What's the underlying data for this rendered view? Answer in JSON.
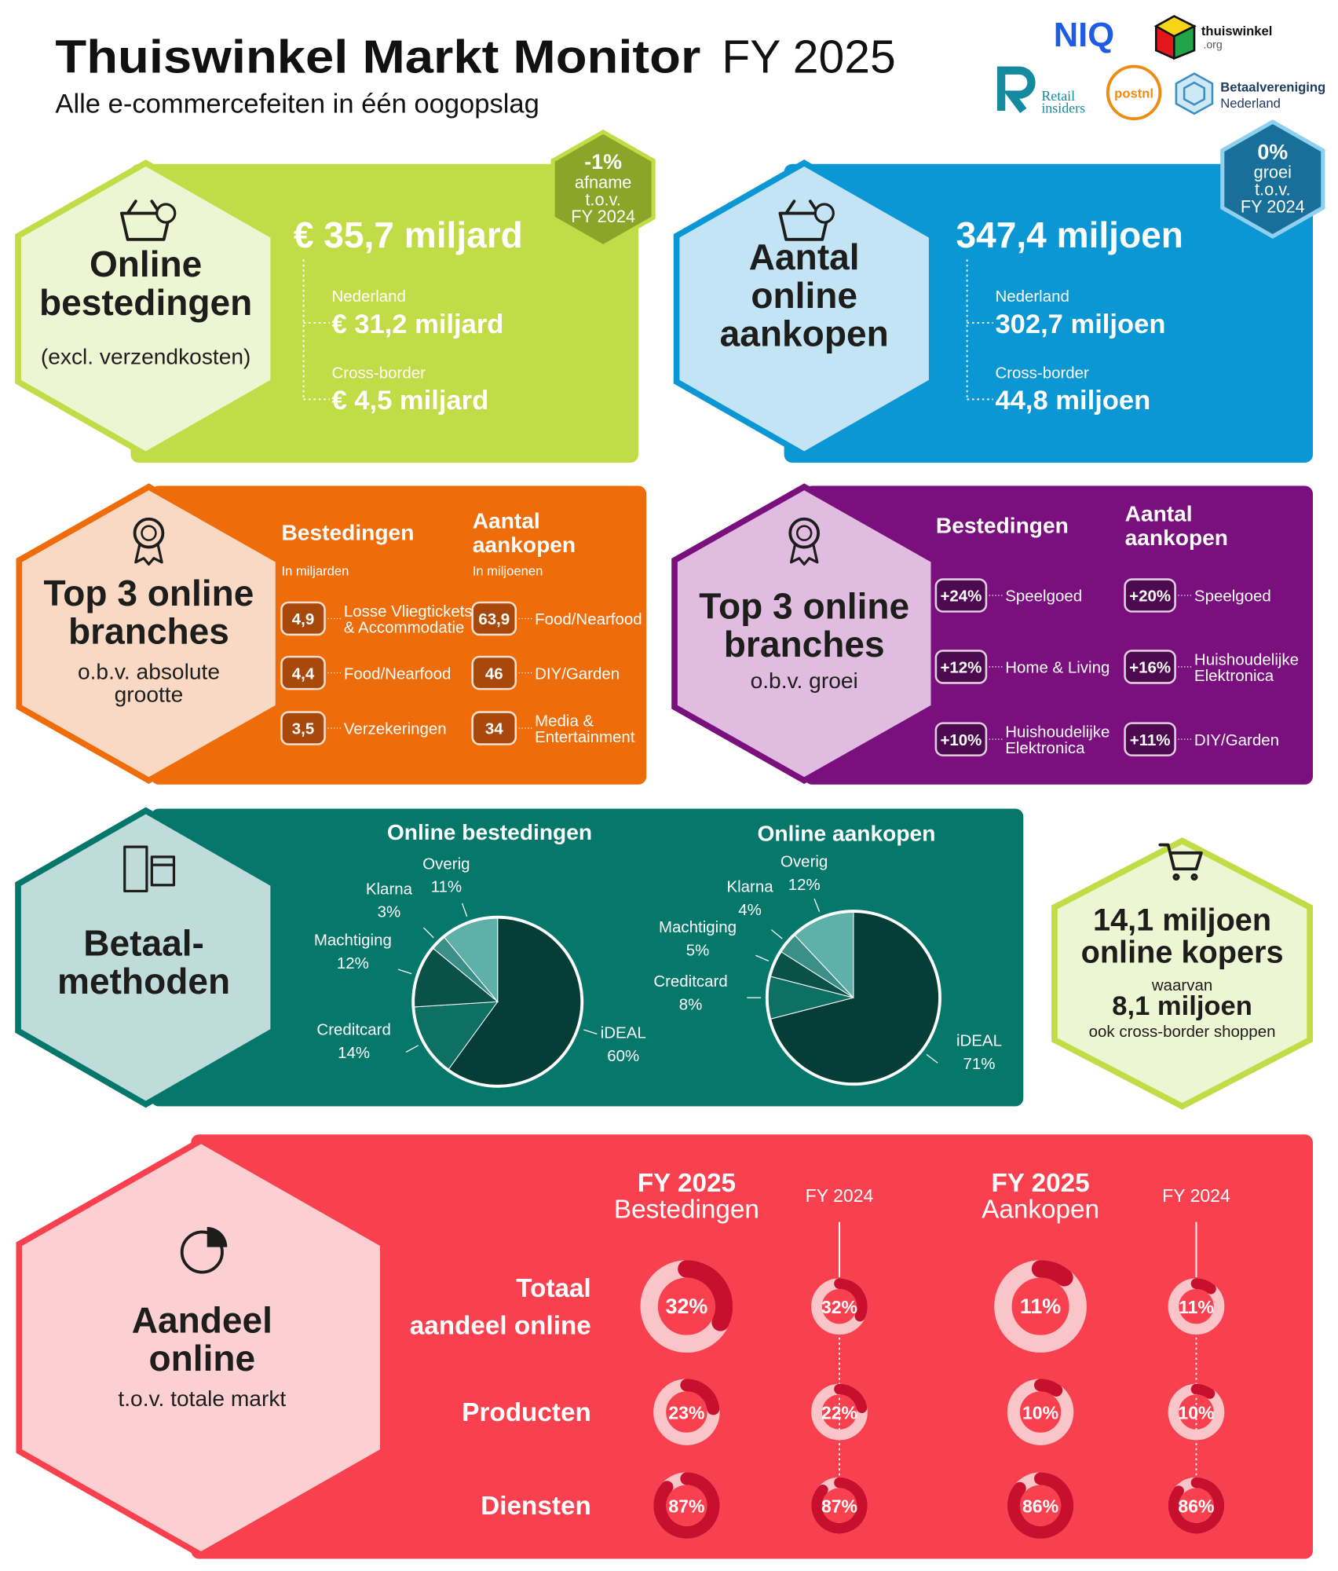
{
  "header": {
    "title": "Thuiswinkel Markt Monitor",
    "title_suffix": "FY 2025",
    "subtitle": "Alle e-commercefeiten in één oogopslag"
  },
  "logos": {
    "niq": "NIQ",
    "thuiswinkel": "thuiswinkel",
    "thuiswinkel_suffix": ".org",
    "retail": "Retail",
    "insiders": "insiders",
    "postnl": "postnl",
    "betaal": "Betaalvereniging",
    "betaal_sub": "Nederland"
  },
  "spending": {
    "title_lines": [
      "Online",
      "bestedingen"
    ],
    "note": "(excl. verzendkosten)",
    "total": "€ 35,7 miljard",
    "nl_label": "Nederland",
    "nl_value": "€ 31,2 miljard",
    "cb_label": "Cross-border",
    "cb_value": "€ 4,5 miljard",
    "badge": [
      "-1%",
      "afname",
      "t.o.v.",
      "FY 2024"
    ]
  },
  "purchases": {
    "title_lines": [
      "Aantal",
      "online",
      "aankopen"
    ],
    "total": "347,4 miljoen",
    "nl_label": "Nederland",
    "nl_value": "302,7 miljoen",
    "cb_label": "Cross-border",
    "cb_value": "44,8 miljoen",
    "badge": [
      "0%",
      "groei",
      "t.o.v.",
      "FY 2024"
    ]
  },
  "top3_size": {
    "title_lines": [
      "Top 3 online",
      "branches"
    ],
    "subtitle_lines": [
      "o.b.v. absolute",
      "grootte"
    ],
    "spend_header": [
      "Bestedingen"
    ],
    "spend_unit": "In miljarden",
    "purch_header": [
      "Aantal",
      "aankopen"
    ],
    "purch_unit": "In miljoenen",
    "spend_items": [
      {
        "value": "4,9",
        "label_lines": [
          "Losse Vliegtickets",
          "& Accommodatie"
        ]
      },
      {
        "value": "4,4",
        "label_lines": [
          "Food/Nearfood"
        ]
      },
      {
        "value": "3,5",
        "label_lines": [
          "Verzekeringen"
        ]
      }
    ],
    "purch_items": [
      {
        "value": "63,9",
        "label_lines": [
          "Food/Nearfood"
        ]
      },
      {
        "value": "46",
        "label_lines": [
          "DIY/Garden"
        ]
      },
      {
        "value": "34",
        "label_lines": [
          "Media &",
          "Entertainment"
        ]
      }
    ]
  },
  "top3_growth": {
    "title_lines": [
      "Top 3 online",
      "branches"
    ],
    "subtitle_lines": [
      "o.b.v. groei"
    ],
    "spend_header": [
      "Bestedingen"
    ],
    "purch_header": [
      "Aantal",
      "aankopen"
    ],
    "spend_items": [
      {
        "value": "+24%",
        "label_lines": [
          "Speelgoed"
        ]
      },
      {
        "value": "+12%",
        "label_lines": [
          "Home & Living"
        ]
      },
      {
        "value": "+10%",
        "label_lines": [
          "Huishoudelijke",
          "Elektronica"
        ]
      }
    ],
    "purch_items": [
      {
        "value": "+20%",
        "label_lines": [
          "Speelgoed"
        ]
      },
      {
        "value": "+16%",
        "label_lines": [
          "Huishoudelijke",
          "Elektronica"
        ]
      },
      {
        "value": "+11%",
        "label_lines": [
          "DIY/Garden"
        ]
      }
    ]
  },
  "payments": {
    "title_lines": [
      "Betaal-",
      "methoden"
    ],
    "pies": [
      {
        "title": "Online bestedingen",
        "categories": [
          "iDEAL",
          "Creditcard",
          "Machtiging",
          "Klarna",
          "Overig"
        ],
        "values": [
          60,
          14,
          12,
          3,
          11
        ],
        "value_labels": [
          "60%",
          "14%",
          "12%",
          "3%",
          "11%"
        ],
        "colors": [
          "#063d36",
          "#0e6f63",
          "#0a5148",
          "#3a8f86",
          "#5fb0a8"
        ]
      },
      {
        "title": "Online aankopen",
        "categories": [
          "iDEAL",
          "Creditcard",
          "Machtiging",
          "Klarna",
          "Overig"
        ],
        "values": [
          71,
          8,
          5,
          4,
          12
        ],
        "value_labels": [
          "71%",
          "8%",
          "5%",
          "4%",
          "12%"
        ],
        "colors": [
          "#063d36",
          "#0e6f63",
          "#0a5148",
          "#3a8f86",
          "#5fb0a8"
        ]
      }
    ]
  },
  "buyers": {
    "value": "14,1 miljoen",
    "line2": "online kopers",
    "sub": "waarvan",
    "value2": "8,1 miljoen",
    "sub2": "ook cross-border shoppen"
  },
  "share": {
    "title_lines": [
      "Aandeel",
      "online"
    ],
    "subtitle": "t.o.v. totale markt",
    "columns": [
      {
        "year": "FY 2025",
        "label": "Bestedingen"
      },
      {
        "year": "FY 2024"
      },
      {
        "year": "FY 2025",
        "label": "Aankopen"
      },
      {
        "year": "FY 2024"
      }
    ],
    "rows": [
      {
        "label_lines": [
          "Totaal",
          "aandeel online"
        ],
        "values": [
          32,
          32,
          11,
          11
        ],
        "value_labels": [
          "32%",
          "32%",
          "11%",
          "11%"
        ]
      },
      {
        "label_lines": [
          "Producten"
        ],
        "values": [
          23,
          22,
          10,
          10
        ],
        "value_labels": [
          "23%",
          "22%",
          "10%",
          "10%"
        ]
      },
      {
        "label_lines": [
          "Diensten"
        ],
        "values": [
          87,
          87,
          86,
          86
        ],
        "value_labels": [
          "87%",
          "87%",
          "86%",
          "86%"
        ]
      }
    ],
    "track_color": "#fac5c9",
    "arc_color": "#c8102e"
  }
}
